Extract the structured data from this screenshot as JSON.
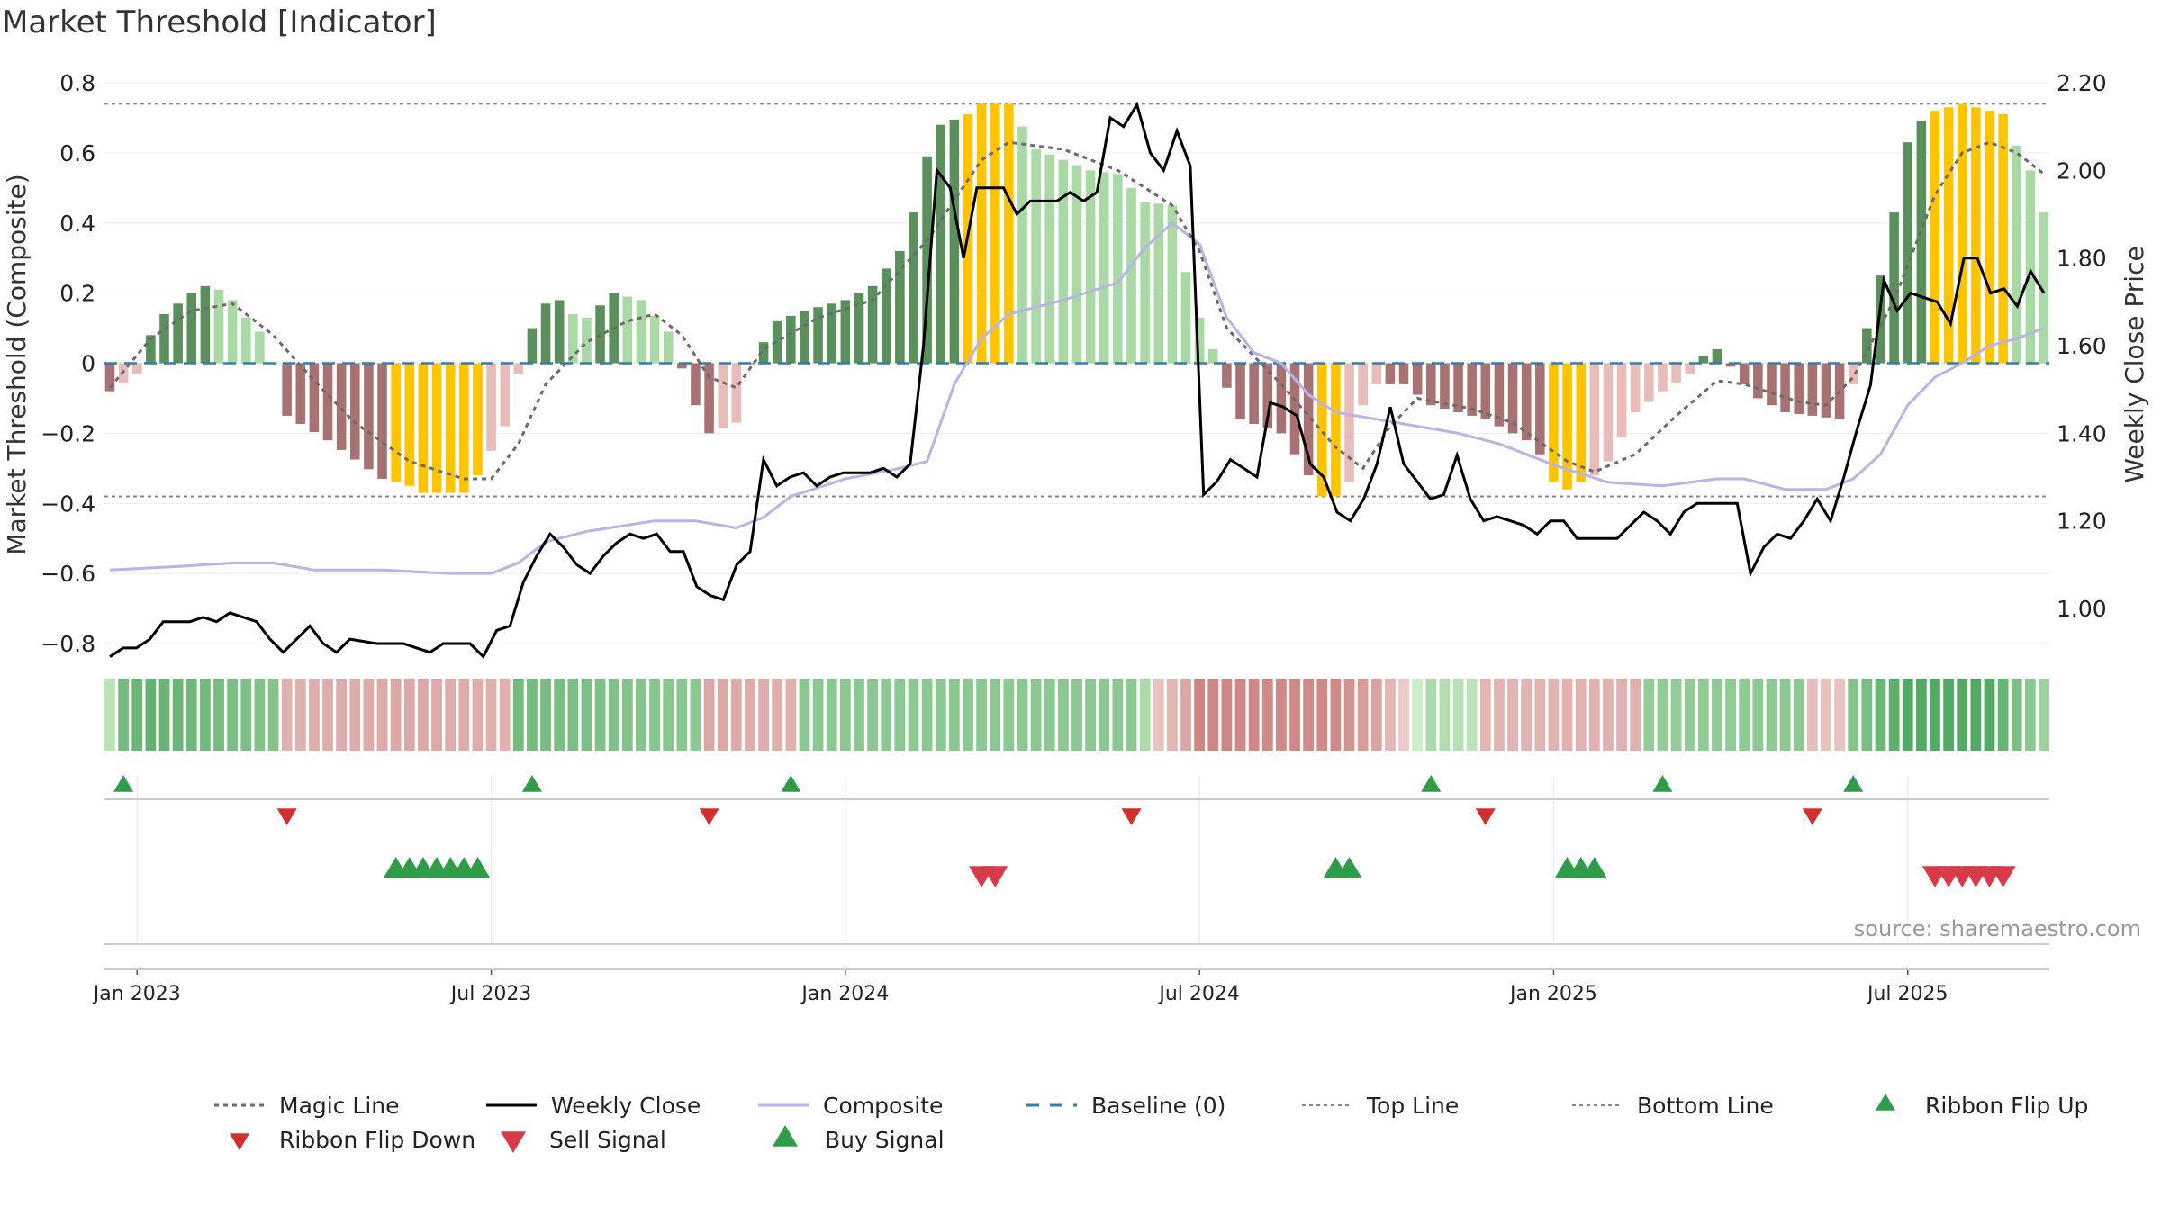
{
  "title": "Market Threshold [Indicator]",
  "source_note": "source: sharemaestro.com",
  "colors": {
    "bull_strong": "#5b8f5b",
    "bull_light": "#a9d9a4",
    "bear_strong": "#a87272",
    "bear_light": "#e8bcb8",
    "extreme": "#ffc400",
    "magic_line": "#6b6b6b",
    "close_line": "#000000",
    "composite_line": "#b8b4e6",
    "baseline": "#2f7fb0",
    "threshold_lines": "#888888",
    "ribbon_up": "#2e9c48",
    "ribbon_down": "#d0302e",
    "sell": "#d93a48",
    "buy": "#2e9c48"
  },
  "chart_data": {
    "type": "bar",
    "title": "Market Threshold [Indicator]",
    "ylabel": "Market Threshold (Composite)",
    "y2label": "Weekly Close Price",
    "ylim": [
      -0.8,
      0.8
    ],
    "y2lim": [
      0.92,
      2.2
    ],
    "yticks": [
      "0.8",
      "0.6",
      "0.4",
      "0.2",
      "0",
      "−0.2",
      "−0.4",
      "−0.6",
      "−0.8"
    ],
    "y2ticks": [
      "2.20",
      "2.00",
      "1.80",
      "1.60",
      "1.40",
      "1.20",
      "1.00"
    ],
    "top_line": 0.74,
    "bottom_line": -0.38,
    "date_ticks": [
      {
        "label": "Jan 2023",
        "week": 2
      },
      {
        "label": "Jul 2023",
        "week": 28
      },
      {
        "label": "Jan 2024",
        "week": 54
      },
      {
        "label": "Jul 2024",
        "week": 80
      },
      {
        "label": "Jan 2025",
        "week": 106
      },
      {
        "label": "Jul 2025",
        "week": 132
      }
    ],
    "weeks": 142,
    "bar_keypoints": [
      [
        0,
        -0.08
      ],
      [
        2,
        -0.03
      ],
      [
        3,
        0.08
      ],
      [
        4,
        0.14
      ],
      [
        5,
        0.17
      ],
      [
        6,
        0.2
      ],
      [
        7,
        0.22
      ],
      [
        8,
        0.21
      ],
      [
        9,
        0.18
      ],
      [
        10,
        0.13
      ],
      [
        11,
        0.09
      ],
      [
        12,
        0.0
      ],
      [
        13,
        -0.15
      ],
      [
        16,
        -0.22
      ],
      [
        20,
        -0.33
      ],
      [
        22,
        -0.35
      ],
      [
        23,
        -0.37
      ],
      [
        26,
        -0.37
      ],
      [
        27,
        -0.32
      ],
      [
        29,
        -0.18
      ],
      [
        30,
        -0.03
      ],
      [
        31,
        0.1
      ],
      [
        32,
        0.17
      ],
      [
        33,
        0.18
      ],
      [
        34,
        0.14
      ],
      [
        35,
        0.13
      ],
      [
        37,
        0.2
      ],
      [
        39,
        0.18
      ],
      [
        41,
        0.09
      ],
      [
        43,
        -0.12
      ],
      [
        44,
        -0.2
      ],
      [
        46,
        -0.17
      ],
      [
        47,
        0.0
      ],
      [
        48,
        0.06
      ],
      [
        49,
        0.12
      ],
      [
        51,
        0.15
      ],
      [
        54,
        0.18
      ],
      [
        56,
        0.22
      ],
      [
        58,
        0.32
      ],
      [
        59,
        0.43
      ],
      [
        60,
        0.59
      ],
      [
        61,
        0.68
      ],
      [
        63,
        0.71
      ],
      [
        64,
        0.74
      ],
      [
        66,
        0.74
      ],
      [
        68,
        0.61
      ],
      [
        70,
        0.58
      ],
      [
        72,
        0.55
      ],
      [
        74,
        0.54
      ],
      [
        76,
        0.46
      ],
      [
        78,
        0.45
      ],
      [
        79,
        0.26
      ],
      [
        80,
        0.13
      ],
      [
        81,
        0.04
      ],
      [
        82,
        -0.07
      ],
      [
        83,
        -0.16
      ],
      [
        86,
        -0.2
      ],
      [
        88,
        -0.32
      ],
      [
        89,
        -0.38
      ],
      [
        90,
        -0.38
      ],
      [
        91,
        -0.34
      ],
      [
        92,
        -0.12
      ],
      [
        93,
        -0.06
      ],
      [
        95,
        -0.06
      ],
      [
        96,
        -0.09
      ],
      [
        97,
        -0.12
      ],
      [
        99,
        -0.14
      ],
      [
        101,
        -0.16
      ],
      [
        103,
        -0.2
      ],
      [
        104,
        -0.22
      ],
      [
        105,
        -0.26
      ],
      [
        106,
        -0.34
      ],
      [
        107,
        -0.36
      ],
      [
        109,
        -0.32
      ],
      [
        110,
        -0.28
      ],
      [
        112,
        -0.14
      ],
      [
        114,
        -0.08
      ],
      [
        116,
        -0.03
      ],
      [
        117,
        0.02
      ],
      [
        118,
        0.04
      ],
      [
        119,
        -0.01
      ],
      [
        120,
        -0.06
      ],
      [
        121,
        -0.1
      ],
      [
        123,
        -0.14
      ],
      [
        125,
        -0.15
      ],
      [
        127,
        -0.16
      ],
      [
        128,
        -0.06
      ],
      [
        129,
        0.1
      ],
      [
        130,
        0.25
      ],
      [
        131,
        0.43
      ],
      [
        132,
        0.63
      ],
      [
        133,
        0.69
      ],
      [
        134,
        0.72
      ],
      [
        136,
        0.74
      ],
      [
        139,
        0.71
      ],
      [
        140,
        0.62
      ],
      [
        141,
        0.55
      ],
      [
        142,
        0.43
      ]
    ],
    "magic_keypoints": [
      [
        0,
        -0.07
      ],
      [
        3,
        0.07
      ],
      [
        6,
        0.15
      ],
      [
        9,
        0.17
      ],
      [
        12,
        0.08
      ],
      [
        15,
        -0.05
      ],
      [
        18,
        -0.17
      ],
      [
        22,
        -0.28
      ],
      [
        26,
        -0.33
      ],
      [
        28,
        -0.33
      ],
      [
        30,
        -0.23
      ],
      [
        32,
        -0.06
      ],
      [
        35,
        0.06
      ],
      [
        38,
        0.12
      ],
      [
        40,
        0.14
      ],
      [
        42,
        0.08
      ],
      [
        44,
        -0.04
      ],
      [
        46,
        -0.07
      ],
      [
        48,
        0.04
      ],
      [
        52,
        0.13
      ],
      [
        56,
        0.18
      ],
      [
        60,
        0.35
      ],
      [
        64,
        0.58
      ],
      [
        66,
        0.63
      ],
      [
        70,
        0.61
      ],
      [
        74,
        0.55
      ],
      [
        78,
        0.45
      ],
      [
        80,
        0.32
      ],
      [
        82,
        0.1
      ],
      [
        86,
        -0.06
      ],
      [
        90,
        -0.24
      ],
      [
        92,
        -0.3
      ],
      [
        94,
        -0.18
      ],
      [
        96,
        -0.1
      ],
      [
        100,
        -0.13
      ],
      [
        103,
        -0.17
      ],
      [
        107,
        -0.28
      ],
      [
        109,
        -0.31
      ],
      [
        112,
        -0.26
      ],
      [
        115,
        -0.15
      ],
      [
        118,
        -0.05
      ],
      [
        120,
        -0.06
      ],
      [
        124,
        -0.11
      ],
      [
        126,
        -0.12
      ],
      [
        128,
        -0.04
      ],
      [
        131,
        0.18
      ],
      [
        134,
        0.48
      ],
      [
        136,
        0.6
      ],
      [
        138,
        0.63
      ],
      [
        140,
        0.6
      ],
      [
        142,
        0.54
      ]
    ],
    "close_keypoints": [
      [
        0,
        0.89
      ],
      [
        1,
        0.91
      ],
      [
        2,
        0.91
      ],
      [
        3,
        0.93
      ],
      [
        4,
        0.97
      ],
      [
        6,
        0.97
      ],
      [
        7,
        0.98
      ],
      [
        8,
        0.97
      ],
      [
        9,
        0.99
      ],
      [
        11,
        0.97
      ],
      [
        12,
        0.93
      ],
      [
        13,
        0.9
      ],
      [
        15,
        0.96
      ],
      [
        16,
        0.92
      ],
      [
        17,
        0.9
      ],
      [
        18,
        0.93
      ],
      [
        20,
        0.92
      ],
      [
        22,
        0.92
      ],
      [
        23,
        0.91
      ],
      [
        24,
        0.9
      ],
      [
        25,
        0.92
      ],
      [
        27,
        0.92
      ],
      [
        28,
        0.89
      ],
      [
        29,
        0.95
      ],
      [
        30,
        0.96
      ],
      [
        31,
        1.06
      ],
      [
        32,
        1.12
      ],
      [
        33,
        1.17
      ],
      [
        34,
        1.14
      ],
      [
        35,
        1.1
      ],
      [
        36,
        1.08
      ],
      [
        37,
        1.12
      ],
      [
        38,
        1.15
      ],
      [
        39,
        1.17
      ],
      [
        40,
        1.16
      ],
      [
        41,
        1.17
      ],
      [
        42,
        1.13
      ],
      [
        43,
        1.13
      ],
      [
        44,
        1.05
      ],
      [
        45,
        1.03
      ],
      [
        46,
        1.02
      ],
      [
        47,
        1.1
      ],
      [
        48,
        1.13
      ],
      [
        49,
        1.34
      ],
      [
        50,
        1.28
      ],
      [
        51,
        1.3
      ],
      [
        52,
        1.31
      ],
      [
        53,
        1.28
      ],
      [
        54,
        1.3
      ],
      [
        55,
        1.31
      ],
      [
        57,
        1.31
      ],
      [
        58,
        1.32
      ],
      [
        59,
        1.3
      ],
      [
        60,
        1.33
      ],
      [
        61,
        1.6
      ],
      [
        62,
        2.0
      ],
      [
        63,
        1.96
      ],
      [
        64,
        1.8
      ],
      [
        65,
        1.96
      ],
      [
        67,
        1.96
      ],
      [
        68,
        1.9
      ],
      [
        69,
        1.93
      ],
      [
        71,
        1.93
      ],
      [
        72,
        1.95
      ],
      [
        73,
        1.93
      ],
      [
        74,
        1.95
      ],
      [
        75,
        2.12
      ],
      [
        76,
        2.1
      ],
      [
        77,
        2.15
      ],
      [
        78,
        2.04
      ],
      [
        79,
        2.0
      ],
      [
        80,
        2.09
      ],
      [
        81,
        2.01
      ],
      [
        82,
        1.26
      ],
      [
        83,
        1.29
      ],
      [
        84,
        1.34
      ],
      [
        85,
        1.32
      ],
      [
        86,
        1.3
      ],
      [
        87,
        1.47
      ],
      [
        88,
        1.46
      ],
      [
        89,
        1.44
      ],
      [
        90,
        1.33
      ],
      [
        91,
        1.3
      ],
      [
        92,
        1.22
      ],
      [
        93,
        1.2
      ],
      [
        94,
        1.25
      ],
      [
        95,
        1.33
      ],
      [
        96,
        1.46
      ],
      [
        97,
        1.33
      ],
      [
        98,
        1.29
      ],
      [
        99,
        1.25
      ],
      [
        100,
        1.26
      ],
      [
        101,
        1.35
      ],
      [
        102,
        1.25
      ],
      [
        103,
        1.2
      ],
      [
        104,
        1.21
      ],
      [
        105,
        1.2
      ],
      [
        106,
        1.19
      ],
      [
        107,
        1.17
      ],
      [
        108,
        1.2
      ],
      [
        109,
        1.2
      ],
      [
        110,
        1.16
      ],
      [
        111,
        1.16
      ],
      [
        113,
        1.16
      ],
      [
        114,
        1.19
      ],
      [
        115,
        1.22
      ],
      [
        116,
        1.2
      ],
      [
        117,
        1.17
      ],
      [
        118,
        1.22
      ],
      [
        119,
        1.24
      ],
      [
        122,
        1.24
      ],
      [
        123,
        1.08
      ],
      [
        124,
        1.14
      ],
      [
        125,
        1.17
      ],
      [
        126,
        1.16
      ],
      [
        127,
        1.2
      ],
      [
        128,
        1.25
      ],
      [
        129,
        1.2
      ],
      [
        130,
        1.3
      ],
      [
        131,
        1.41
      ],
      [
        132,
        1.51
      ],
      [
        133,
        1.75
      ],
      [
        134,
        1.68
      ],
      [
        135,
        1.72
      ],
      [
        137,
        1.7
      ],
      [
        138,
        1.65
      ],
      [
        139,
        1.8
      ],
      [
        140,
        1.8
      ],
      [
        141,
        1.72
      ],
      [
        142,
        1.73
      ],
      [
        143,
        1.69
      ],
      [
        144,
        1.77
      ],
      [
        145,
        1.72
      ]
    ],
    "composite_keypoints": [
      [
        0,
        -0.59
      ],
      [
        5,
        -0.58
      ],
      [
        9,
        -0.57
      ],
      [
        12,
        -0.57
      ],
      [
        15,
        -0.59
      ],
      [
        20,
        -0.59
      ],
      [
        25,
        -0.6
      ],
      [
        28,
        -0.6
      ],
      [
        30,
        -0.57
      ],
      [
        32,
        -0.51
      ],
      [
        35,
        -0.48
      ],
      [
        40,
        -0.45
      ],
      [
        43,
        -0.45
      ],
      [
        46,
        -0.47
      ],
      [
        48,
        -0.44
      ],
      [
        50,
        -0.38
      ],
      [
        54,
        -0.33
      ],
      [
        58,
        -0.3
      ],
      [
        60,
        -0.28
      ],
      [
        62,
        -0.06
      ],
      [
        64,
        0.07
      ],
      [
        66,
        0.14
      ],
      [
        70,
        0.18
      ],
      [
        74,
        0.23
      ],
      [
        76,
        0.33
      ],
      [
        78,
        0.4
      ],
      [
        80,
        0.34
      ],
      [
        82,
        0.13
      ],
      [
        84,
        0.03
      ],
      [
        86,
        0.0
      ],
      [
        88,
        -0.09
      ],
      [
        90,
        -0.14
      ],
      [
        93,
        -0.16
      ],
      [
        96,
        -0.18
      ],
      [
        99,
        -0.2
      ],
      [
        102,
        -0.23
      ],
      [
        106,
        -0.29
      ],
      [
        110,
        -0.34
      ],
      [
        114,
        -0.35
      ],
      [
        118,
        -0.33
      ],
      [
        120,
        -0.33
      ],
      [
        123,
        -0.36
      ],
      [
        126,
        -0.36
      ],
      [
        128,
        -0.33
      ],
      [
        130,
        -0.26
      ],
      [
        132,
        -0.12
      ],
      [
        134,
        -0.04
      ],
      [
        136,
        0.0
      ],
      [
        138,
        0.05
      ],
      [
        140,
        0.07
      ],
      [
        142,
        0.1
      ]
    ],
    "ribbon_keypoints": [
      [
        0,
        0.2
      ],
      [
        1,
        0.65
      ],
      [
        3,
        0.75
      ],
      [
        12,
        0.55
      ],
      [
        13,
        -0.4
      ],
      [
        22,
        -0.5
      ],
      [
        29,
        -0.4
      ],
      [
        30,
        0.65
      ],
      [
        43,
        0.5
      ],
      [
        44,
        -0.5
      ],
      [
        50,
        -0.4
      ],
      [
        51,
        0.5
      ],
      [
        75,
        0.5
      ],
      [
        76,
        0.3
      ],
      [
        77,
        -0.2
      ],
      [
        79,
        -0.5
      ],
      [
        80,
        -0.85
      ],
      [
        90,
        -0.8
      ],
      [
        93,
        -0.55
      ],
      [
        97,
        0.3
      ],
      [
        100,
        0.2
      ],
      [
        101,
        -0.35
      ],
      [
        112,
        -0.4
      ],
      [
        113,
        0.45
      ],
      [
        124,
        0.5
      ],
      [
        125,
        -0.25
      ],
      [
        127,
        -0.2
      ],
      [
        128,
        0.55
      ],
      [
        132,
        0.85
      ],
      [
        138,
        0.85
      ],
      [
        140,
        0.6
      ],
      [
        142,
        0.4
      ]
    ],
    "ribbon_flip_up_weeks": [
      1,
      31,
      50,
      97,
      114,
      128
    ],
    "ribbon_flip_down_weeks": [
      13,
      44,
      75,
      101,
      125
    ],
    "buy_signal_weeks": [
      21,
      22,
      23,
      24,
      25,
      26,
      27,
      90,
      91,
      107,
      108,
      109
    ],
    "sell_signal_weeks": [
      64,
      65,
      134,
      135,
      136,
      137,
      138,
      139
    ]
  },
  "legend": [
    "Magic Line",
    "Weekly Close",
    "Composite",
    "Baseline (0)",
    "Top Line",
    "Bottom Line",
    "Ribbon Flip Up",
    "Ribbon Flip Down",
    "Sell Signal",
    "Buy Signal"
  ]
}
